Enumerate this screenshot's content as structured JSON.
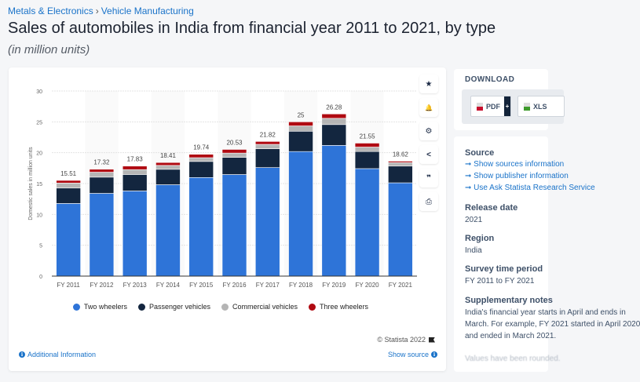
{
  "breadcrumb": [
    "Metals & Electronics",
    "Vehicle Manufacturing"
  ],
  "breadcrumb_sep": "›",
  "title": "Sales of automobiles in India from financial year 2011 to 2021, by type",
  "subtitle": "(in million units)",
  "chart_data": {
    "type": "bar",
    "stacked": true,
    "title": "Sales of automobiles in India from financial year 2011 to 2021, by type",
    "ylabel": "Domestic sales in million units",
    "xlabel": "",
    "ylim": [
      0,
      30
    ],
    "yticks": [
      0,
      5,
      10,
      15,
      20,
      25,
      30
    ],
    "grid": true,
    "legend_position": "bottom",
    "categories": [
      "FY 2011",
      "FY 2012",
      "FY 2013",
      "FY 2014",
      "FY 2015",
      "FY 2016",
      "FY 2017",
      "FY 2018",
      "FY 2019",
      "FY 2020",
      "FY 2021"
    ],
    "totals": [
      15.51,
      17.32,
      17.83,
      18.41,
      19.74,
      20.53,
      21.82,
      25,
      26.28,
      21.55,
      18.62
    ],
    "total_labels": [
      "15.51",
      "17.32",
      "17.83",
      "18.41",
      "19.74",
      "20.53",
      "21.82",
      "25",
      "26.28",
      "21.55",
      "18.62"
    ],
    "series": [
      {
        "name": "Two wheelers",
        "color": "#2e74d8",
        "values": [
          11.77,
          13.41,
          13.8,
          14.81,
          15.98,
          16.46,
          17.59,
          20.19,
          21.18,
          17.42,
          15.12
        ]
      },
      {
        "name": "Passenger vehicles",
        "color": "#13263f",
        "values": [
          2.5,
          2.63,
          2.67,
          2.5,
          2.6,
          2.79,
          3.05,
          3.29,
          3.38,
          2.77,
          2.71
        ]
      },
      {
        "name": "Commercial vehicles",
        "color": "#b5b5b5",
        "values": [
          0.81,
          0.8,
          0.79,
          0.63,
          0.61,
          0.69,
          0.71,
          0.86,
          1.01,
          0.72,
          0.57
        ]
      },
      {
        "name": "Three wheelers",
        "color": "#b00a12",
        "values": [
          0.43,
          0.48,
          0.57,
          0.47,
          0.55,
          0.59,
          0.47,
          0.66,
          0.71,
          0.64,
          0.22
        ]
      }
    ]
  },
  "copyright": "© Statista 2022",
  "show_source": "Show source",
  "additional_info": "Additional Information",
  "toolbar": {
    "icons": [
      "star-icon",
      "bell-icon",
      "gear-icon",
      "share-icon",
      "quote-icon",
      "print-icon"
    ],
    "glyphs": [
      "★",
      "🔔",
      "⚙",
      "<",
      "❞",
      "⎙"
    ]
  },
  "download": {
    "label": "DOWNLOAD",
    "pdf": "PDF",
    "xls": "XLS",
    "plus": "+"
  },
  "meta": {
    "source_head": "Source",
    "source_links": [
      "Show sources information",
      "Show publisher information",
      "Use Ask Statista Research Service"
    ],
    "release_head": "Release date",
    "release_val": "2021",
    "region_head": "Region",
    "region_val": "India",
    "period_head": "Survey time period",
    "period_val": "FY 2011 to FY 2021",
    "notes_head": "Supplementary notes",
    "notes_lines": [
      "India's financial year starts in April and ends in",
      "March. For example, FY 2021 started in April 2020",
      "and ended in March 2021."
    ],
    "notes_fade": "Values have been rounded."
  }
}
